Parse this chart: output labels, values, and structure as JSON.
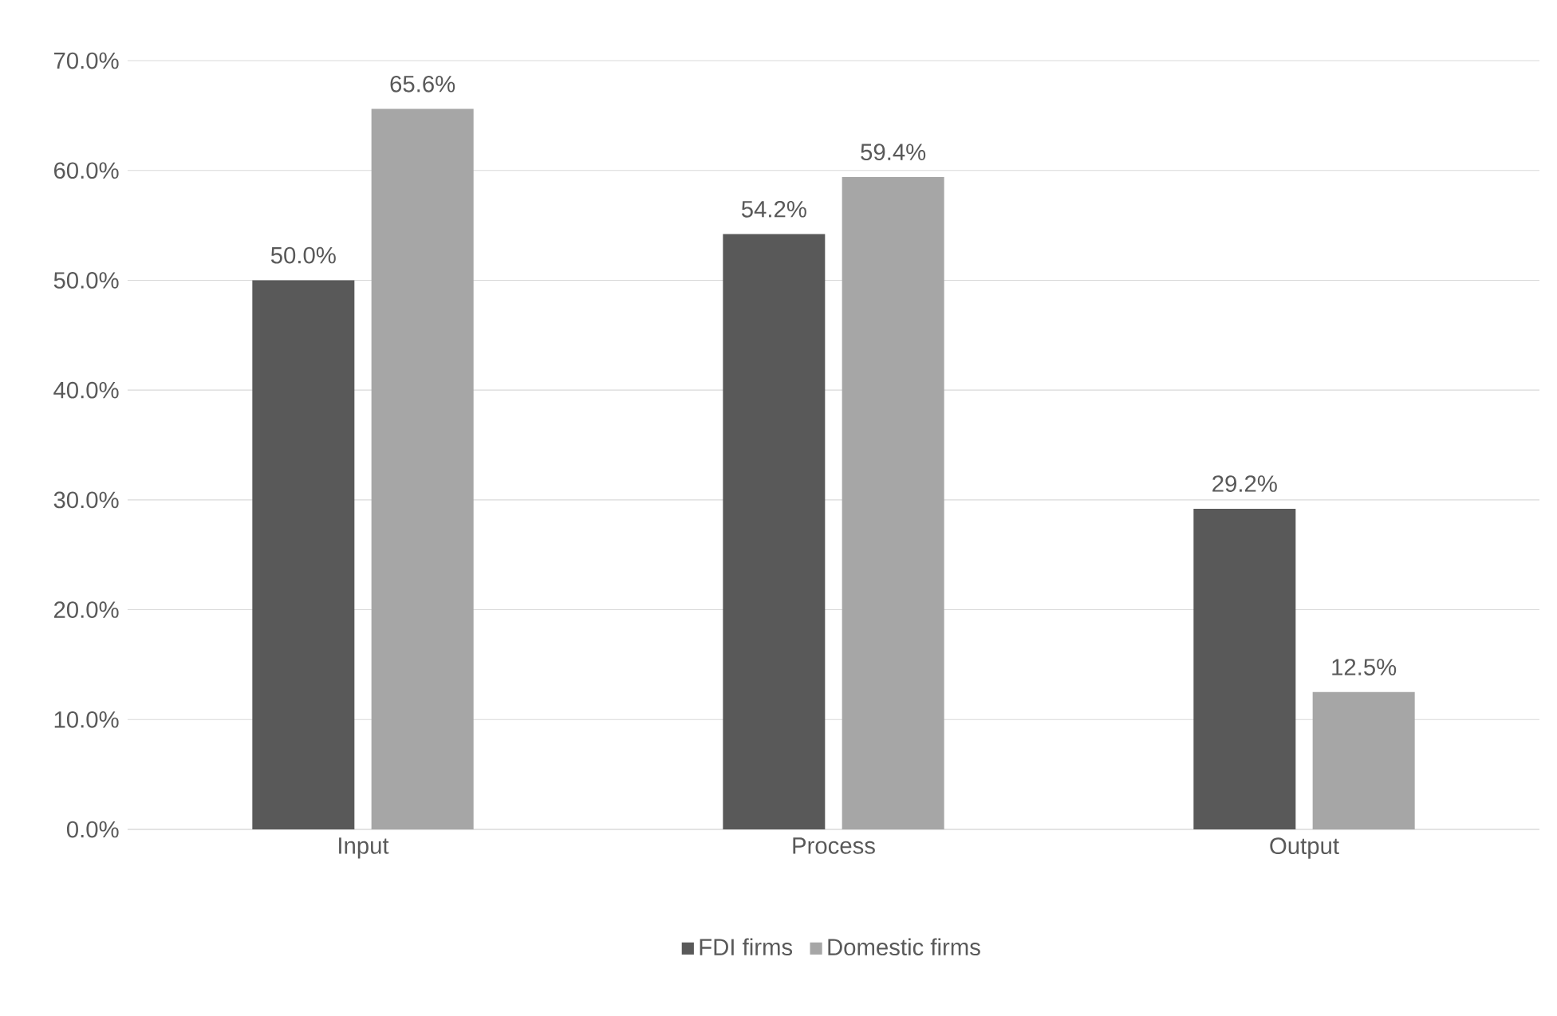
{
  "chart_data": {
    "type": "bar",
    "categories": [
      "Input",
      "Process",
      "Output"
    ],
    "series": [
      {
        "name": "FDI firms",
        "color": "#595959",
        "values": [
          50.0,
          54.2,
          29.2
        ],
        "value_labels": [
          "50.0%",
          "54.2%",
          "29.2%"
        ]
      },
      {
        "name": "Domestic firms",
        "color": "#a6a6a6",
        "values": [
          65.6,
          59.4,
          12.5
        ],
        "value_labels": [
          "65.6%",
          "59.4%",
          "12.5%"
        ]
      }
    ],
    "ylim": [
      0,
      70
    ],
    "yticks": [
      {
        "value": 0,
        "label": "0.0%"
      },
      {
        "value": 10,
        "label": "10.0%"
      },
      {
        "value": 20,
        "label": "20.0%"
      },
      {
        "value": 30,
        "label": "30.0%"
      },
      {
        "value": 40,
        "label": "40.0%"
      },
      {
        "value": 50,
        "label": "50.0%"
      },
      {
        "value": 60,
        "label": "60.0%"
      },
      {
        "value": 70,
        "label": "70.0%"
      }
    ],
    "grid": "y",
    "legend": "bottom"
  }
}
